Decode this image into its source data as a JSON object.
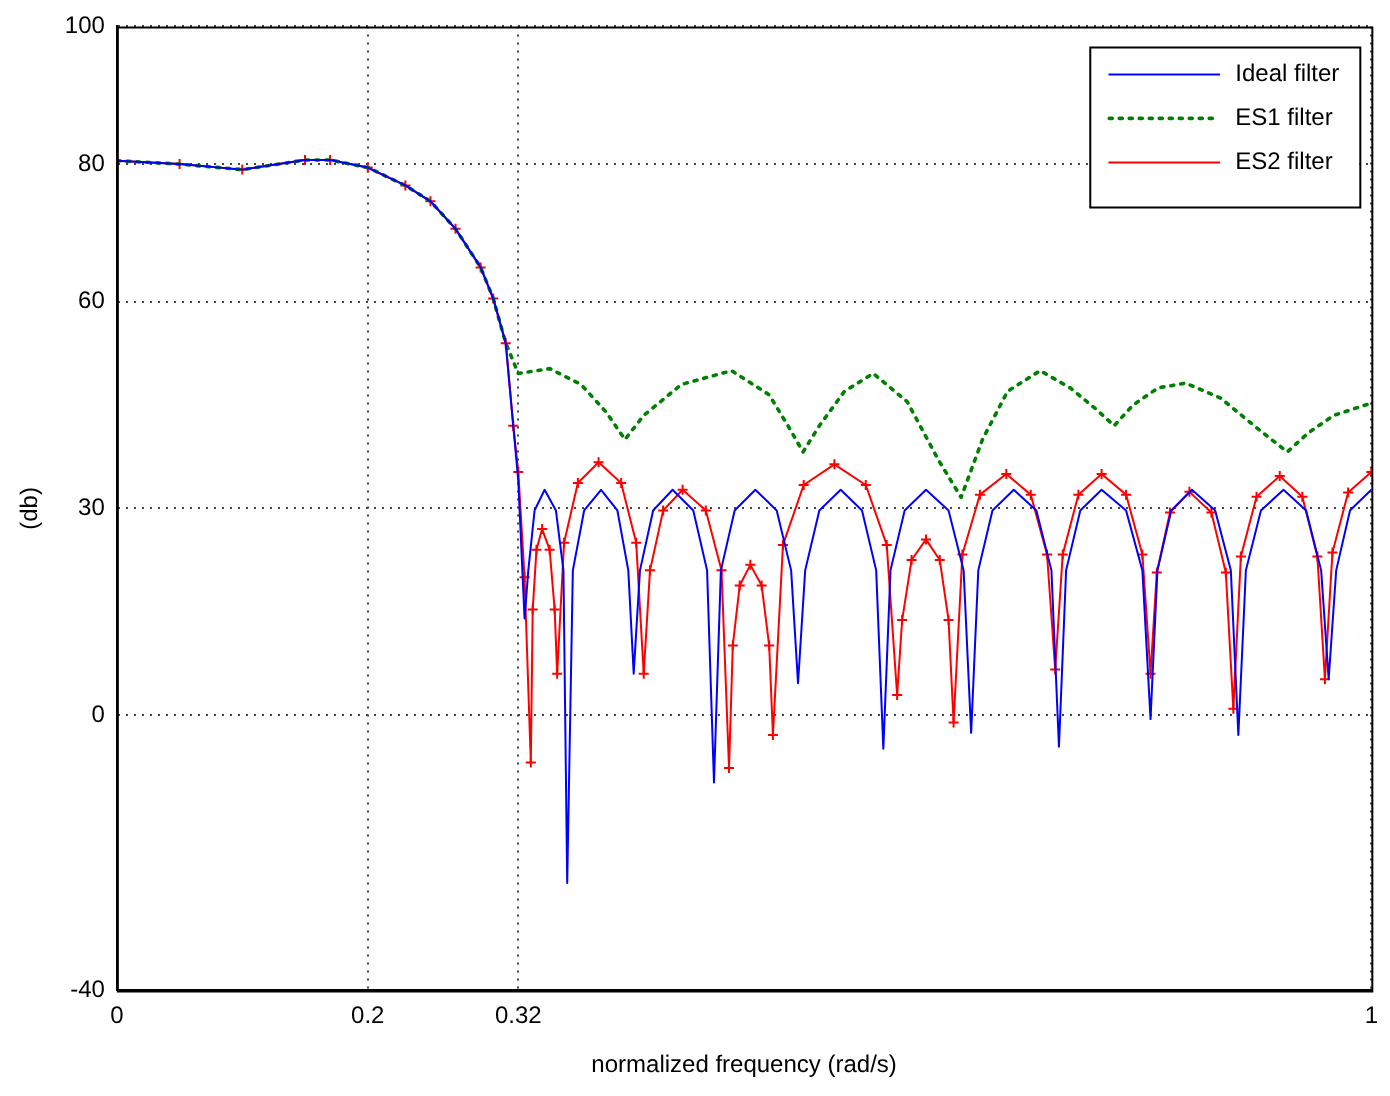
{
  "chart_data": {
    "type": "line",
    "xlabel": "normalized frequency (rad/s)",
    "ylabel": "(db)",
    "xlim": [
      0,
      1
    ],
    "xticks": [
      0,
      0.2,
      0.32,
      1
    ],
    "ylim": [
      -40,
      100
    ],
    "yticks": [
      -40,
      0,
      30,
      60,
      80,
      100
    ],
    "grid": true,
    "legend": "top right",
    "series": [
      {
        "name": "Ideal filter",
        "color": "#0000ff",
        "line_style": "solid",
        "marker": "none",
        "x": [
          0,
          0.05,
          0.1,
          0.15,
          0.17,
          0.2,
          0.23,
          0.25,
          0.27,
          0.29,
          0.3,
          0.31,
          0.316,
          0.32,
          0.325,
          0.328,
          0.333,
          0.341,
          0.35,
          0.356,
          0.359,
          0.3635,
          0.3725,
          0.386,
          0.399,
          0.4077,
          0.412,
          0.417,
          0.4275,
          0.443,
          0.4595,
          0.4705,
          0.476,
          0.4815,
          0.4925,
          0.509,
          0.526,
          0.5375,
          0.543,
          0.5487,
          0.56,
          0.577,
          0.594,
          0.6053,
          0.611,
          0.6167,
          0.628,
          0.645,
          0.663,
          0.675,
          0.681,
          0.6867,
          0.698,
          0.715,
          0.733,
          0.745,
          0.751,
          0.7567,
          0.768,
          0.785,
          0.8045,
          0.8175,
          0.824,
          0.8295,
          0.8405,
          0.857,
          0.8755,
          0.888,
          0.894,
          0.9,
          0.912,
          0.93,
          0.948,
          0.96,
          0.966,
          0.972,
          0.983,
          1
        ],
        "values": [
          80.5,
          80,
          79.2,
          80.6,
          80.6,
          79.5,
          76.9,
          74.6,
          70.6,
          65,
          60.5,
          54,
          42,
          34,
          14,
          21,
          29.7,
          32.7,
          29.7,
          21,
          -24.4,
          21,
          29.7,
          32.7,
          29.7,
          21,
          6,
          21,
          29.7,
          32.7,
          29.7,
          21,
          -9.8,
          21,
          29.7,
          32.7,
          29.7,
          21,
          4.6,
          21,
          29.7,
          32.7,
          29.7,
          21,
          -4.9,
          21,
          29.7,
          32.7,
          29.7,
          21,
          -2.6,
          21,
          29.7,
          32.7,
          29.7,
          21,
          -4.6,
          21,
          29.7,
          32.7,
          29.7,
          21,
          -0.6,
          21,
          29.7,
          32.7,
          29.7,
          21,
          -2.9,
          21,
          29.7,
          32.7,
          29.7,
          21,
          5.2,
          21,
          29.7,
          32.7
        ]
      },
      {
        "name": "ES1 filter",
        "color": "#008000",
        "line_style": "dotted",
        "marker": "none",
        "x": [
          0,
          0.05,
          0.1,
          0.15,
          0.17,
          0.2,
          0.23,
          0.25,
          0.27,
          0.29,
          0.3,
          0.31,
          0.32,
          0.345,
          0.37,
          0.39,
          0.405,
          0.42,
          0.45,
          0.49,
          0.52,
          0.535,
          0.547,
          0.56,
          0.58,
          0.603,
          0.63,
          0.655,
          0.673,
          0.69,
          0.71,
          0.736,
          0.76,
          0.78,
          0.795,
          0.81,
          0.83,
          0.852,
          0.88,
          0.91,
          0.933,
          0.95,
          0.97,
          1
        ],
        "values": [
          80.5,
          80,
          79.2,
          80.6,
          80.6,
          79.5,
          76.9,
          74.6,
          70.6,
          65,
          60.5,
          54,
          49.6,
          50.3,
          48,
          44,
          40,
          43.5,
          48,
          50,
          46.5,
          42,
          38.2,
          42,
          47,
          49.6,
          45.5,
          37,
          31.6,
          40,
          47,
          50,
          47.5,
          44.5,
          42,
          45,
          47.5,
          48.2,
          46,
          41.5,
          38.2,
          41,
          43.5,
          45.3
        ]
      },
      {
        "name": "ES2 filter",
        "color": "#ff0000",
        "line_style": "solid",
        "marker": "cross",
        "x": [
          0,
          0.05,
          0.1,
          0.15,
          0.17,
          0.2,
          0.23,
          0.25,
          0.27,
          0.29,
          0.3,
          0.31,
          0.316,
          0.32,
          0.325,
          0.33,
          0.3315,
          0.3345,
          0.339,
          0.345,
          0.349,
          0.351,
          0.3565,
          0.3675,
          0.384,
          0.402,
          0.414,
          0.42,
          0.425,
          0.4355,
          0.451,
          0.4695,
          0.482,
          0.488,
          0.491,
          0.4965,
          0.505,
          0.514,
          0.52,
          0.523,
          0.531,
          0.5475,
          0.572,
          0.597,
          0.6137,
          0.622,
          0.626,
          0.6335,
          0.645,
          0.656,
          0.663,
          0.667,
          0.674,
          0.688,
          0.709,
          0.7285,
          0.7415,
          0.748,
          0.754,
          0.7665,
          0.785,
          0.8045,
          0.8175,
          0.824,
          0.829,
          0.8395,
          0.855,
          0.8725,
          0.884,
          0.89,
          0.896,
          0.9085,
          0.927,
          0.945,
          0.957,
          0.963,
          0.969,
          0.9815,
          1
        ],
        "values": [
          80.5,
          80,
          79.2,
          80.6,
          80.6,
          79.5,
          76.9,
          74.6,
          70.6,
          65,
          60.5,
          54,
          42,
          35.3,
          20,
          -6.9,
          15.3,
          24,
          27,
          24,
          15.3,
          6,
          25,
          33.7,
          36.7,
          33.7,
          25,
          6,
          21,
          29.7,
          32.7,
          29.7,
          21,
          -7.7,
          10.1,
          18.8,
          21.8,
          18.8,
          10.1,
          -2.9,
          24.7,
          33.4,
          36.4,
          33.4,
          24.7,
          2.9,
          13.8,
          22.5,
          25.5,
          22.5,
          13.8,
          -1.1,
          23.3,
          32,
          35,
          32,
          23.3,
          6.6,
          23.3,
          32,
          35,
          32,
          23.3,
          6,
          20.7,
          29.4,
          32.4,
          29.4,
          20.7,
          0.9,
          23,
          31.7,
          34.7,
          31.7,
          23,
          5.2,
          23.6,
          32.3,
          35.3
        ]
      }
    ]
  }
}
